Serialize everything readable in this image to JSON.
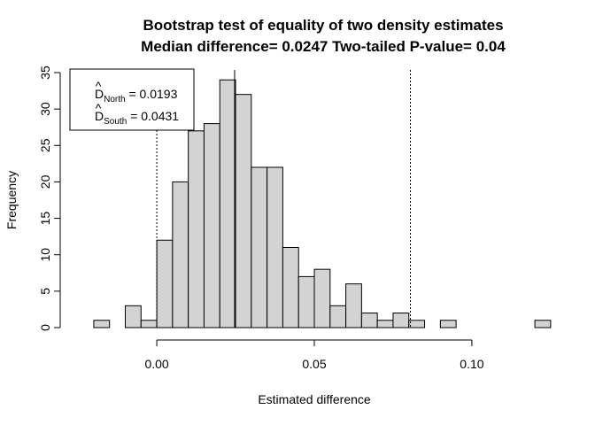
{
  "chart_data": {
    "type": "bar",
    "title": "Bootstrap test of equality of two density estimates",
    "subtitle": "Median difference= 0.0247   Two-tailed P-value= 0.04",
    "xlabel": "Estimated difference",
    "ylabel": "Frequency",
    "xlim": [
      -0.027,
      0.127
    ],
    "ylim": [
      0,
      35
    ],
    "x_ticks": [
      0.0,
      0.05,
      0.1
    ],
    "x_tick_labels": [
      "0.00",
      "0.05",
      "0.10"
    ],
    "y_ticks": [
      0,
      5,
      10,
      15,
      20,
      25,
      30,
      35
    ],
    "y_tick_labels": [
      "0",
      "5",
      "10",
      "15",
      "20",
      "25",
      "30",
      "35"
    ],
    "bin_width": 0.005,
    "bins": [
      {
        "x0": -0.02,
        "x1": -0.015,
        "count": 1
      },
      {
        "x0": -0.015,
        "x1": -0.01,
        "count": 0
      },
      {
        "x0": -0.01,
        "x1": -0.005,
        "count": 3
      },
      {
        "x0": -0.005,
        "x1": 0.0,
        "count": 1
      },
      {
        "x0": 0.0,
        "x1": 0.005,
        "count": 12
      },
      {
        "x0": 0.005,
        "x1": 0.01,
        "count": 20
      },
      {
        "x0": 0.01,
        "x1": 0.015,
        "count": 27
      },
      {
        "x0": 0.015,
        "x1": 0.02,
        "count": 28
      },
      {
        "x0": 0.02,
        "x1": 0.025,
        "count": 34
      },
      {
        "x0": 0.025,
        "x1": 0.03,
        "count": 32
      },
      {
        "x0": 0.03,
        "x1": 0.035,
        "count": 22
      },
      {
        "x0": 0.035,
        "x1": 0.04,
        "count": 22
      },
      {
        "x0": 0.04,
        "x1": 0.045,
        "count": 11
      },
      {
        "x0": 0.045,
        "x1": 0.05,
        "count": 7
      },
      {
        "x0": 0.05,
        "x1": 0.055,
        "count": 8
      },
      {
        "x0": 0.055,
        "x1": 0.06,
        "count": 3
      },
      {
        "x0": 0.06,
        "x1": 0.065,
        "count": 6
      },
      {
        "x0": 0.065,
        "x1": 0.07,
        "count": 2
      },
      {
        "x0": 0.07,
        "x1": 0.075,
        "count": 1
      },
      {
        "x0": 0.075,
        "x1": 0.08,
        "count": 2
      },
      {
        "x0": 0.08,
        "x1": 0.085,
        "count": 1
      },
      {
        "x0": 0.085,
        "x1": 0.09,
        "count": 0
      },
      {
        "x0": 0.09,
        "x1": 0.095,
        "count": 1
      },
      {
        "x0": 0.095,
        "x1": 0.1,
        "count": 0
      },
      {
        "x0": 0.1,
        "x1": 0.105,
        "count": 0
      },
      {
        "x0": 0.105,
        "x1": 0.11,
        "count": 0
      },
      {
        "x0": 0.11,
        "x1": 0.115,
        "count": 0
      },
      {
        "x0": 0.115,
        "x1": 0.12,
        "count": 0
      },
      {
        "x0": 0.12,
        "x1": 0.125,
        "count": 1
      }
    ],
    "vertical_lines": [
      {
        "x": 0.0247,
        "style": "solid"
      },
      {
        "x": 0.0,
        "style": "dotted"
      },
      {
        "x": 0.0805,
        "style": "dotted"
      }
    ],
    "legend": {
      "placement": "top-left",
      "entries": [
        {
          "symbol": "D",
          "subscript": "North",
          "value": "0.0193"
        },
        {
          "symbol": "D",
          "subscript": "South",
          "value": "0.0431"
        }
      ]
    },
    "grid": false,
    "bar_fill": "#d3d3d3",
    "bar_stroke": "#000000"
  }
}
